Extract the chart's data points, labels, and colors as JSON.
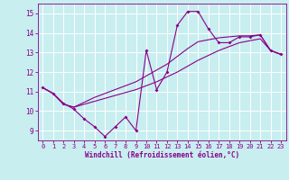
{
  "x": [
    0,
    1,
    2,
    3,
    4,
    5,
    6,
    7,
    8,
    9,
    10,
    11,
    12,
    13,
    14,
    15,
    16,
    17,
    18,
    19,
    20,
    21,
    22,
    23
  ],
  "main_y": [
    11.2,
    10.9,
    10.4,
    10.1,
    9.6,
    9.2,
    8.7,
    9.2,
    9.7,
    9.0,
    13.1,
    11.1,
    12.0,
    14.4,
    15.1,
    15.1,
    14.2,
    13.5,
    13.5,
    13.8,
    13.8,
    13.9,
    13.1,
    12.9
  ],
  "trend1_y": [
    11.2,
    10.9,
    10.35,
    10.2,
    10.35,
    10.5,
    10.65,
    10.8,
    10.95,
    11.1,
    11.3,
    11.5,
    11.75,
    12.0,
    12.3,
    12.6,
    12.85,
    13.1,
    13.3,
    13.5,
    13.6,
    13.7,
    13.1,
    12.9
  ],
  "trend2_y": [
    11.2,
    10.9,
    10.35,
    10.2,
    10.45,
    10.7,
    10.9,
    11.1,
    11.3,
    11.5,
    11.8,
    12.1,
    12.4,
    12.8,
    13.2,
    13.55,
    13.65,
    13.75,
    13.8,
    13.85,
    13.85,
    13.9,
    13.1,
    12.9
  ],
  "color": "#880088",
  "bg_color": "#c8eef0",
  "grid_color": "#ffffff",
  "xlabel": "Windchill (Refroidissement éolien,°C)",
  "ylim": [
    8.5,
    15.5
  ],
  "xlim": [
    -0.5,
    23.5
  ],
  "yticks": [
    9,
    10,
    11,
    12,
    13,
    14,
    15
  ],
  "xticks": [
    0,
    1,
    2,
    3,
    4,
    5,
    6,
    7,
    8,
    9,
    10,
    11,
    12,
    13,
    14,
    15,
    16,
    17,
    18,
    19,
    20,
    21,
    22,
    23
  ]
}
